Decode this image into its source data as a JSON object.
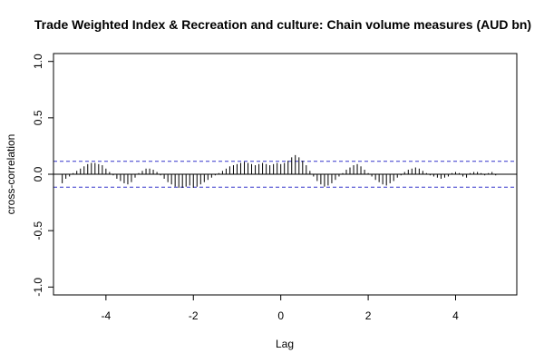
{
  "chart_data": {
    "type": "bar",
    "title": "Trade Weighted Index & Recreation and culture: Chain volume measures (AUD bn)",
    "xlabel": "Lag",
    "ylabel": "cross-correlation",
    "xlim": [
      -5.2,
      5.4
    ],
    "ylim": [
      -1.07,
      1.07
    ],
    "x_ticks": [
      -4,
      -2,
      0,
      2,
      4
    ],
    "x_tick_labels": [
      "-4",
      "-2",
      "0",
      "2",
      "4"
    ],
    "y_ticks": [
      -1.0,
      -0.5,
      0.0,
      0.5,
      1.0
    ],
    "y_tick_labels": [
      "-1.0",
      "-0.5",
      "0.0",
      "0.5",
      "1.0"
    ],
    "confidence_bound": 0.115,
    "colors": {
      "bars": "#000000",
      "ci": "#3333cc",
      "frame": "#000000"
    },
    "lags": [
      -5.0,
      -4.917,
      -4.833,
      -4.75,
      -4.667,
      -4.583,
      -4.5,
      -4.417,
      -4.333,
      -4.25,
      -4.167,
      -4.083,
      -4.0,
      -3.917,
      -3.833,
      -3.75,
      -3.667,
      -3.583,
      -3.5,
      -3.417,
      -3.333,
      -3.25,
      -3.167,
      -3.083,
      -3.0,
      -2.917,
      -2.833,
      -2.75,
      -2.667,
      -2.583,
      -2.5,
      -2.417,
      -2.333,
      -2.25,
      -2.167,
      -2.083,
      -2.0,
      -1.917,
      -1.833,
      -1.75,
      -1.667,
      -1.583,
      -1.5,
      -1.417,
      -1.333,
      -1.25,
      -1.167,
      -1.083,
      -1.0,
      -0.917,
      -0.833,
      -0.75,
      -0.667,
      -0.583,
      -0.5,
      -0.417,
      -0.333,
      -0.25,
      -0.167,
      -0.083,
      0.0,
      0.083,
      0.167,
      0.25,
      0.333,
      0.417,
      0.5,
      0.583,
      0.667,
      0.75,
      0.833,
      0.917,
      1.0,
      1.083,
      1.167,
      1.25,
      1.333,
      1.417,
      1.5,
      1.583,
      1.667,
      1.75,
      1.833,
      1.917,
      2.0,
      2.083,
      2.167,
      2.25,
      2.333,
      2.417,
      2.5,
      2.583,
      2.667,
      2.75,
      2.833,
      2.917,
      3.0,
      3.083,
      3.167,
      3.25,
      3.333,
      3.417,
      3.5,
      3.583,
      3.667,
      3.75,
      3.833,
      3.917,
      4.0,
      4.083,
      4.167,
      4.25,
      4.333,
      4.417,
      4.5,
      4.583,
      4.667,
      4.75,
      4.833,
      4.917
    ],
    "values": [
      -0.08,
      -0.04,
      -0.02,
      0.01,
      0.03,
      0.05,
      0.07,
      0.09,
      0.1,
      0.1,
      0.09,
      0.08,
      0.05,
      0.02,
      -0.01,
      -0.04,
      -0.06,
      -0.08,
      -0.09,
      -0.07,
      -0.03,
      0.01,
      0.03,
      0.05,
      0.05,
      0.04,
      0.02,
      -0.01,
      -0.04,
      -0.07,
      -0.09,
      -0.11,
      -0.12,
      -0.12,
      -0.11,
      -0.1,
      -0.12,
      -0.11,
      -0.09,
      -0.07,
      -0.05,
      -0.03,
      -0.01,
      0.01,
      0.03,
      0.05,
      0.07,
      0.08,
      0.09,
      0.1,
      0.11,
      0.1,
      0.09,
      0.08,
      0.09,
      0.1,
      0.09,
      0.08,
      0.09,
      0.1,
      0.09,
      0.1,
      0.12,
      0.15,
      0.17,
      0.15,
      0.12,
      0.08,
      0.03,
      -0.02,
      -0.06,
      -0.09,
      -0.11,
      -0.1,
      -0.08,
      -0.05,
      -0.02,
      0.01,
      0.04,
      0.06,
      0.08,
      0.09,
      0.07,
      0.04,
      0.01,
      -0.02,
      -0.05,
      -0.07,
      -0.09,
      -0.1,
      -0.08,
      -0.06,
      -0.03,
      -0.01,
      0.02,
      0.04,
      0.05,
      0.06,
      0.05,
      0.03,
      0.01,
      -0.01,
      -0.02,
      -0.03,
      -0.04,
      -0.03,
      -0.02,
      0.01,
      0.02,
      0.01,
      -0.02,
      -0.03,
      0.01,
      0.02,
      0.02,
      0.01,
      -0.01,
      0.01,
      0.02,
      -0.01
    ]
  }
}
